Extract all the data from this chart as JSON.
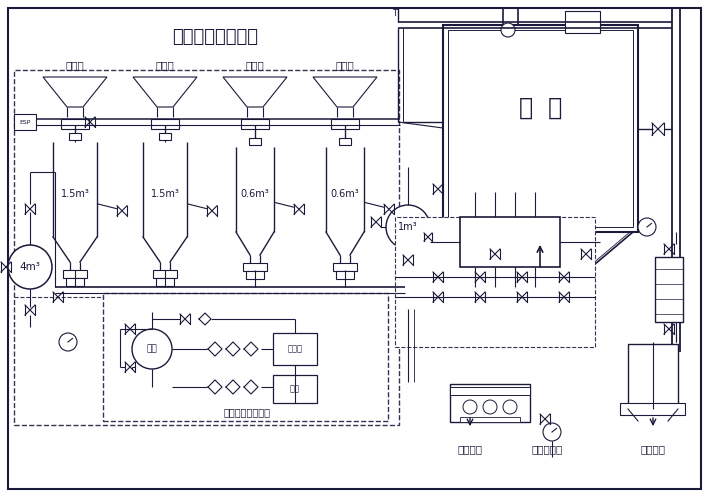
{
  "title": "浓相气力输送系统",
  "bg_color": "#ffffff",
  "line_color": "#1a1a3a",
  "title_fontsize": 12,
  "hui_ku_label": "灰  库",
  "bottom_labels": [
    "湿灰装车",
    "压力水进口",
    "干灰装车"
  ],
  "supply_label": "气力输送供气系统",
  "tank_4m3_label": "4m³",
  "tank_1m3_label": "1m³",
  "zong_guan_label": "总罐",
  "kongya_label": "空压机",
  "bei_yong_label": "备用",
  "field_labels": [
    "一电场",
    "二电场",
    "三电场",
    "四电场"
  ],
  "tank_labels": [
    "1.5m³",
    "1.5m³",
    "0.6m³",
    "0.6m³"
  ]
}
